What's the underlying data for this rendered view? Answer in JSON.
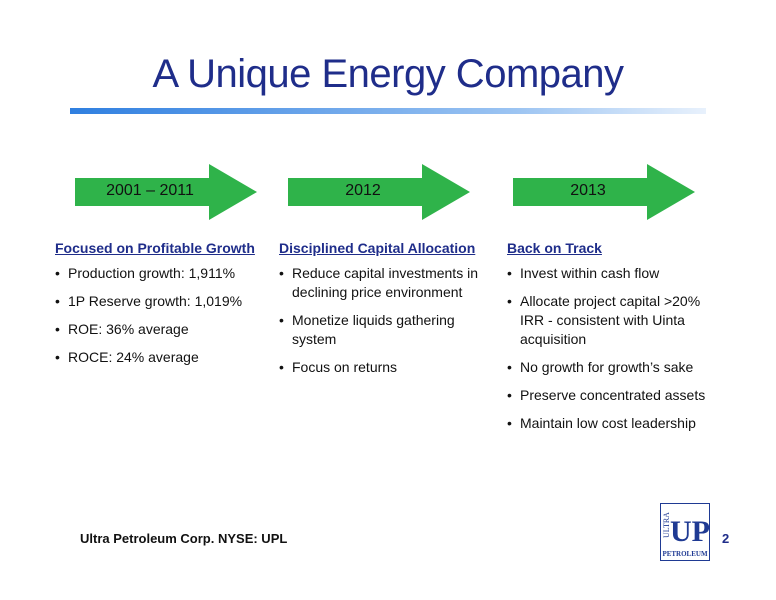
{
  "title": "A Unique Energy Company",
  "columns": [
    {
      "period": "2001 – 2011",
      "heading": "Focused on Profitable Growth",
      "bullets": [
        "Production growth: 1,911%",
        "1P Reserve growth: 1,019%",
        "ROE: 36% average",
        "ROCE: 24% average"
      ]
    },
    {
      "period": "2012",
      "heading": "Disciplined Capital Allocation",
      "bullets": [
        "Reduce capital investments in declining price environment",
        "Monetize liquids gathering system",
        "Focus on returns"
      ]
    },
    {
      "period": "2013",
      "heading": "Back on Track",
      "bullets": [
        "Invest within cash flow",
        "Allocate project capital >20% IRR - consistent with Uinta acquisition",
        "No growth for growth’s sake",
        "Preserve concentrated assets",
        "Maintain low cost leadership"
      ]
    }
  ],
  "footer": {
    "company": "Ultra Petroleum Corp. NYSE: UPL",
    "page": "2"
  },
  "logo": {
    "side": "ULTRA",
    "mark": "UP",
    "bottom": "PETROLEUM"
  }
}
